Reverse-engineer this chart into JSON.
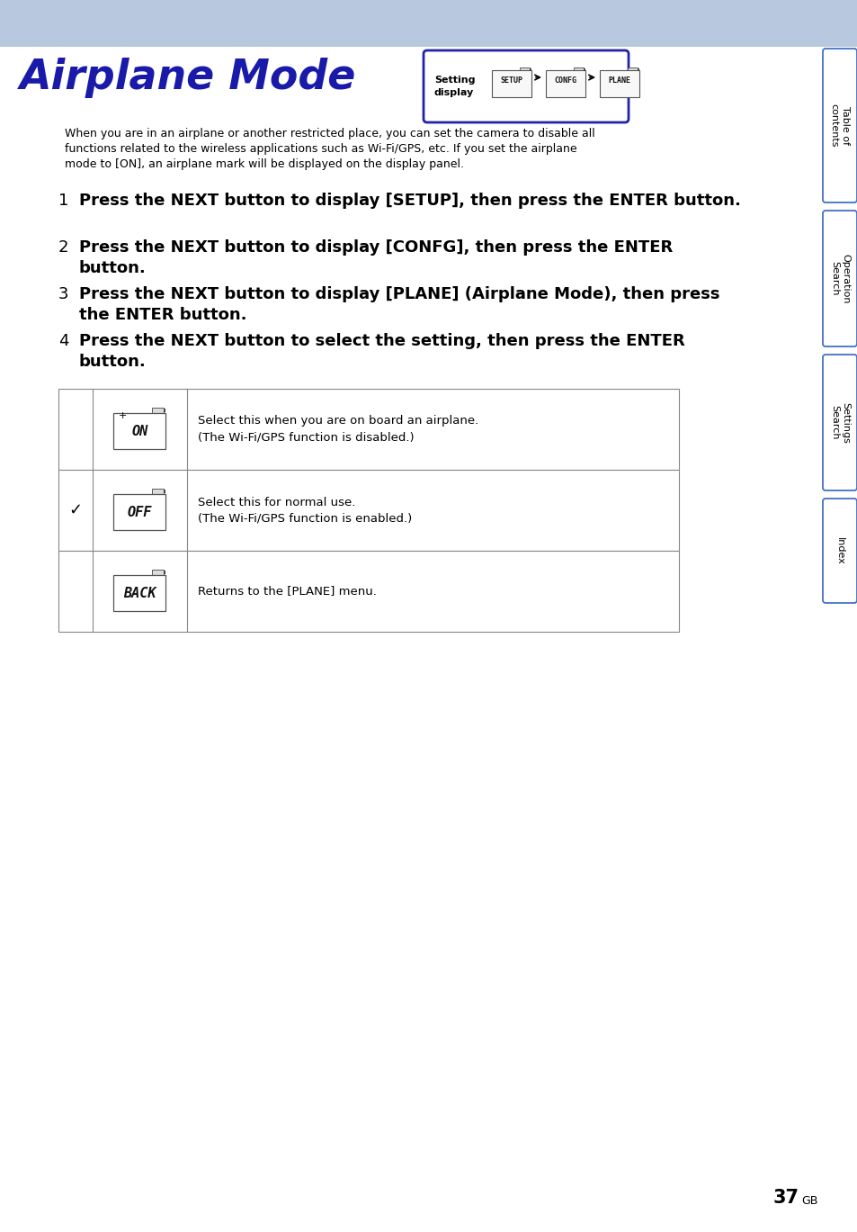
{
  "title": "Airplane Mode",
  "title_color": "#1a1aaa",
  "header_bg_color": "#b8c8df",
  "page_bg": "#ffffff",
  "body_text_color": "#000000",
  "intro_text_lines": [
    "When you are in an airplane or another restricted place, you can set the camera to disable all",
    "functions related to the wireless applications such as Wi-Fi/GPS, etc. If you set the airplane",
    "mode to [ON], an airplane mark will be displayed on the display panel."
  ],
  "steps": [
    [
      "1",
      "Press the NEXT button to display [SETUP], then press the ENTER button."
    ],
    [
      "2",
      "Press the NEXT button to display [CONFG], then press the ENTER\nbutton."
    ],
    [
      "3",
      "Press the NEXT button to display [PLANE] (Airplane Mode), then press\nthe ENTER button."
    ],
    [
      "4",
      "Press the NEXT button to select the setting, then press the ENTER\nbutton."
    ]
  ],
  "table_rows": [
    {
      "check": "",
      "icon_label": "ON",
      "has_plus": true,
      "desc_line1": "Select this when you are on board an airplane.",
      "desc_line2": "(The Wi-Fi/GPS function is disabled.)"
    },
    {
      "check": "✓",
      "icon_label": "OFF",
      "has_plus": false,
      "desc_line1": "Select this for normal use.",
      "desc_line2": "(The Wi-Fi/GPS function is enabled.)"
    },
    {
      "check": "",
      "icon_label": "BACK",
      "has_plus": false,
      "desc_line1": "Returns to the [PLANE] menu.",
      "desc_line2": ""
    }
  ],
  "sidebar_tabs": [
    "Table of\ncontents",
    "Operation\nSearch",
    "Settings\nSearch",
    "Index"
  ],
  "page_number": "37",
  "page_suffix": "GB",
  "setting_display_label": "Setting\ndisplay",
  "setting_display_steps": [
    "SETUP",
    "CONFG",
    "PLANE"
  ]
}
